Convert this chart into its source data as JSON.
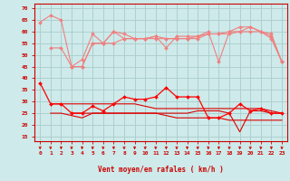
{
  "x": [
    0,
    1,
    2,
    3,
    4,
    5,
    6,
    7,
    8,
    9,
    10,
    11,
    12,
    13,
    14,
    15,
    16,
    17,
    18,
    19,
    20,
    21,
    22,
    23
  ],
  "series": [
    {
      "name": "rafales_top",
      "color": "#f08080",
      "marker": "D",
      "markersize": 2,
      "linewidth": 0.8,
      "values": [
        64,
        67,
        65,
        45,
        48,
        59,
        55,
        60,
        57,
        57,
        57,
        58,
        53,
        58,
        58,
        58,
        60,
        47,
        60,
        60,
        62,
        60,
        57,
        47
      ]
    },
    {
      "name": "rafales_mid1",
      "color": "#f08080",
      "marker": "D",
      "markersize": 2,
      "linewidth": 0.8,
      "values": [
        null,
        53,
        53,
        45,
        45,
        55,
        55,
        55,
        57,
        57,
        57,
        57,
        57,
        57,
        57,
        58,
        59,
        59,
        59,
        60,
        60,
        60,
        59,
        47
      ]
    },
    {
      "name": "rafales_mid2",
      "color": "#f08080",
      "marker": "D",
      "markersize": 2,
      "linewidth": 0.8,
      "values": [
        null,
        null,
        null,
        45,
        45,
        55,
        55,
        60,
        59,
        57,
        57,
        58,
        57,
        57,
        57,
        57,
        59,
        59,
        60,
        62,
        62,
        60,
        58,
        47
      ]
    },
    {
      "name": "vent_moyen_main",
      "color": "#ff0000",
      "marker": "D",
      "markersize": 2,
      "linewidth": 0.9,
      "values": [
        38,
        29,
        29,
        25,
        25,
        28,
        26,
        29,
        32,
        31,
        31,
        32,
        36,
        32,
        32,
        32,
        23,
        23,
        25,
        29,
        26,
        27,
        25,
        25
      ]
    },
    {
      "name": "vent_moyen_flat1",
      "color": "#dd0000",
      "marker": null,
      "markersize": 0,
      "linewidth": 0.8,
      "values": [
        null,
        29,
        29,
        29,
        29,
        29,
        29,
        29,
        29,
        29,
        28,
        27,
        27,
        27,
        27,
        27,
        27,
        27,
        27,
        27,
        27,
        27,
        26,
        25
      ]
    },
    {
      "name": "vent_moyen_flat2",
      "color": "#dd0000",
      "marker": null,
      "markersize": 0,
      "linewidth": 0.8,
      "values": [
        null,
        25,
        25,
        24,
        23,
        25,
        25,
        25,
        25,
        25,
        25,
        25,
        25,
        25,
        25,
        26,
        26,
        26,
        25,
        17,
        26,
        26,
        25,
        25
      ]
    },
    {
      "name": "vent_moyen_flat3",
      "color": "#dd0000",
      "marker": null,
      "markersize": 0,
      "linewidth": 0.8,
      "values": [
        null,
        null,
        null,
        25,
        25,
        25,
        25,
        25,
        25,
        25,
        25,
        25,
        24,
        23,
        23,
        23,
        23,
        23,
        22,
        22,
        22,
        22,
        22,
        22
      ]
    }
  ],
  "ylim": [
    13,
    72
  ],
  "yticks": [
    15,
    20,
    25,
    30,
    35,
    40,
    45,
    50,
    55,
    60,
    65,
    70
  ],
  "xlim": [
    -0.5,
    23.5
  ],
  "xlabel": "Vent moyen/en rafales ( km/h )",
  "bg_color": "#ceeaea",
  "grid_color": "#aacccc",
  "tick_color": "#cc0000",
  "label_color": "#cc0000"
}
